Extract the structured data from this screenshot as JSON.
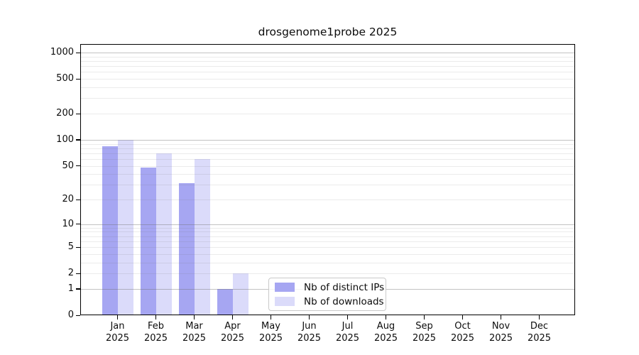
{
  "title": "drosgenome1probe 2025",
  "chart_data": {
    "type": "bar",
    "title": "drosgenome1probe 2025",
    "categories": [
      "Jan",
      "Feb",
      "Mar",
      "Apr",
      "May",
      "Jun",
      "Jul",
      "Aug",
      "Sep",
      "Oct",
      "Nov",
      "Dec"
    ],
    "x_year": "2025",
    "series": [
      {
        "name": "Nb of distinct IPs",
        "color": "#a6a6f2",
        "values": [
          85,
          48,
          31,
          1,
          0,
          0,
          0,
          0,
          0,
          0,
          0,
          0
        ]
      },
      {
        "name": "Nb of downloads",
        "color": "#dbdbfa",
        "values": [
          100,
          70,
          60,
          2,
          0,
          0,
          0,
          0,
          0,
          0,
          0,
          0
        ]
      }
    ],
    "y_scale": "log10(value+1)",
    "y_tick_labels": [
      0,
      1,
      2,
      5,
      10,
      20,
      50,
      100,
      200,
      500,
      1000
    ],
    "y_major_gridlines": [
      1,
      10,
      100,
      1000
    ],
    "y_minor_gridlines": [
      2,
      3,
      4,
      5,
      6,
      7,
      8,
      9,
      20,
      30,
      40,
      50,
      60,
      70,
      80,
      90,
      200,
      300,
      400,
      500,
      600,
      700,
      800,
      900
    ],
    "ylim": [
      0,
      1250
    ],
    "grid": "horizontal",
    "legend_position": "bottom-center-inside",
    "background": "#ffffff"
  }
}
